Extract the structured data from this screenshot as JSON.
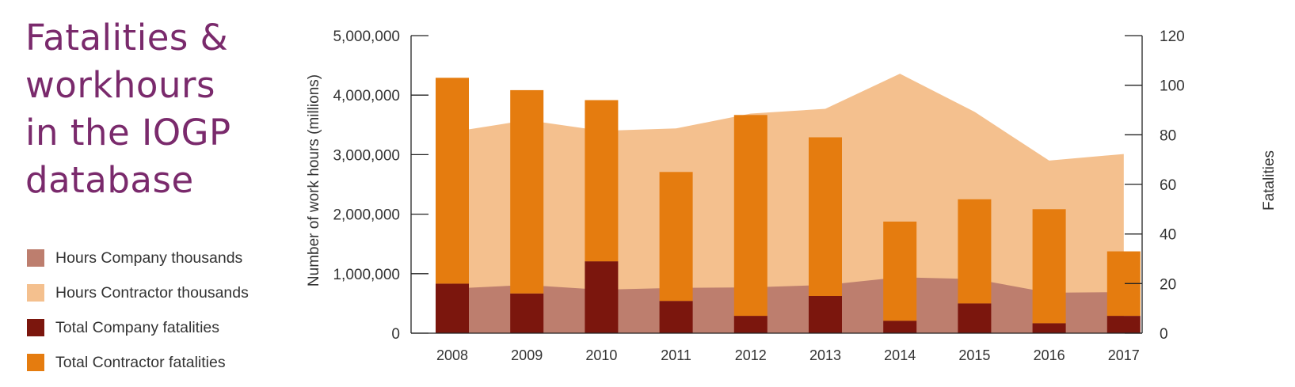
{
  "title_lines": [
    "Fatalities &",
    "workhours",
    "in the IOGP",
    "database"
  ],
  "legend": [
    {
      "label": "Hours Company thousands",
      "color": "#bd7e6e"
    },
    {
      "label": "Hours Contractor thousands",
      "color": "#f4c08e"
    },
    {
      "label": "Total Company fatalities",
      "color": "#7b160d"
    },
    {
      "label": "Total Contractor fatalities",
      "color": "#e57c0f"
    }
  ],
  "chart_data": {
    "type": "bar",
    "categories": [
      "2008",
      "2009",
      "2010",
      "2011",
      "2012",
      "2013",
      "2014",
      "2015",
      "2016",
      "2017"
    ],
    "series": [
      {
        "name": "Hours Company thousands",
        "type": "area",
        "axis": "left",
        "color": "#bd7e6e",
        "values": [
          750000,
          810000,
          730000,
          760000,
          770000,
          810000,
          940000,
          910000,
          680000,
          690000
        ]
      },
      {
        "name": "Hours Contractor thousands",
        "type": "area",
        "axis": "left",
        "color": "#f4c08e",
        "values": [
          3380000,
          3580000,
          3400000,
          3440000,
          3690000,
          3770000,
          4360000,
          3720000,
          2900000,
          3010000
        ]
      },
      {
        "name": "Total Company fatalities",
        "type": "bar",
        "axis": "right",
        "color": "#7b160d",
        "values": [
          20,
          16,
          29,
          13,
          7,
          15,
          5,
          12,
          4,
          7
        ]
      },
      {
        "name": "Total Contractor fatalities",
        "type": "bar",
        "axis": "right",
        "color": "#e57c0f",
        "values": [
          83,
          82,
          65,
          52,
          81,
          64,
          40,
          42,
          46,
          26
        ]
      }
    ],
    "y_left": {
      "label": "Number of work hours (millions)",
      "range": [
        0,
        5000000
      ],
      "ticks": [
        0,
        1000000,
        2000000,
        3000000,
        4000000,
        5000000
      ],
      "tick_labels": [
        "0",
        "1,000,000",
        "2,000,000",
        "3,000,000",
        "4,000,000",
        "5,000,000"
      ]
    },
    "y_right": {
      "label": "Fatalities",
      "range": [
        0,
        120
      ],
      "ticks": [
        0,
        20,
        40,
        60,
        80,
        100,
        120
      ],
      "tick_labels": [
        "0",
        "20",
        "40",
        "60",
        "80",
        "100",
        "120"
      ]
    },
    "bar_mode": "stacked",
    "grid": false,
    "legend_position": "left"
  }
}
